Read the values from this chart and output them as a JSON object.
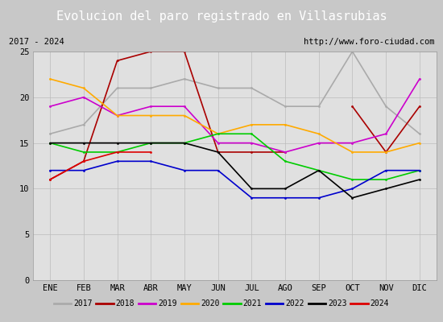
{
  "title": "Evolucion del paro registrado en Villasrubias",
  "subtitle_left": "2017 - 2024",
  "subtitle_right": "http://www.foro-ciudad.com",
  "months": [
    "ENE",
    "FEB",
    "MAR",
    "ABR",
    "MAY",
    "JUN",
    "JUL",
    "AGO",
    "SEP",
    "OCT",
    "NOV",
    "DIC"
  ],
  "series": {
    "2017": {
      "data": [
        16,
        17,
        21,
        21,
        22,
        21,
        21,
        19,
        19,
        25,
        19,
        16
      ],
      "color": "#aaaaaa",
      "linewidth": 1.2
    },
    "2018": {
      "data": [
        11,
        13,
        24,
        25,
        25,
        14,
        14,
        14,
        null,
        19,
        14,
        19
      ],
      "color": "#aa0000",
      "linewidth": 1.2
    },
    "2019": {
      "data": [
        19,
        20,
        18,
        19,
        19,
        15,
        15,
        14,
        15,
        15,
        16,
        22
      ],
      "color": "#cc00cc",
      "linewidth": 1.2
    },
    "2020": {
      "data": [
        22,
        21,
        18,
        18,
        18,
        16,
        17,
        17,
        16,
        14,
        14,
        15
      ],
      "color": "#ffaa00",
      "linewidth": 1.2
    },
    "2021": {
      "data": [
        15,
        14,
        14,
        15,
        15,
        16,
        16,
        13,
        12,
        11,
        11,
        12
      ],
      "color": "#00cc00",
      "linewidth": 1.2
    },
    "2022": {
      "data": [
        12,
        12,
        13,
        13,
        12,
        12,
        9,
        9,
        9,
        10,
        12,
        12
      ],
      "color": "#0000cc",
      "linewidth": 1.2
    },
    "2023": {
      "data": [
        15,
        15,
        15,
        15,
        15,
        14,
        10,
        10,
        12,
        9,
        10,
        11
      ],
      "color": "#000000",
      "linewidth": 1.2
    },
    "2024": {
      "data": [
        11,
        13,
        14,
        14,
        null,
        null,
        null,
        null,
        null,
        null,
        null,
        null
      ],
      "color": "#dd0000",
      "linewidth": 1.2
    }
  },
  "ylim": [
    0,
    25
  ],
  "yticks": [
    0,
    5,
    10,
    15,
    20,
    25
  ],
  "outer_bg": "#c8c8c8",
  "plot_bg_color": "#e0e0e0",
  "title_bg_color": "#5588cc",
  "title_color": "#ffffff",
  "title_fontsize": 11,
  "subtitle_fontsize": 7.5,
  "tick_fontsize": 7.5,
  "legend_years": [
    "2017",
    "2018",
    "2019",
    "2020",
    "2021",
    "2022",
    "2023",
    "2024"
  ],
  "legend_colors": [
    "#aaaaaa",
    "#aa0000",
    "#cc00cc",
    "#ffaa00",
    "#00cc00",
    "#0000cc",
    "#000000",
    "#dd0000"
  ]
}
